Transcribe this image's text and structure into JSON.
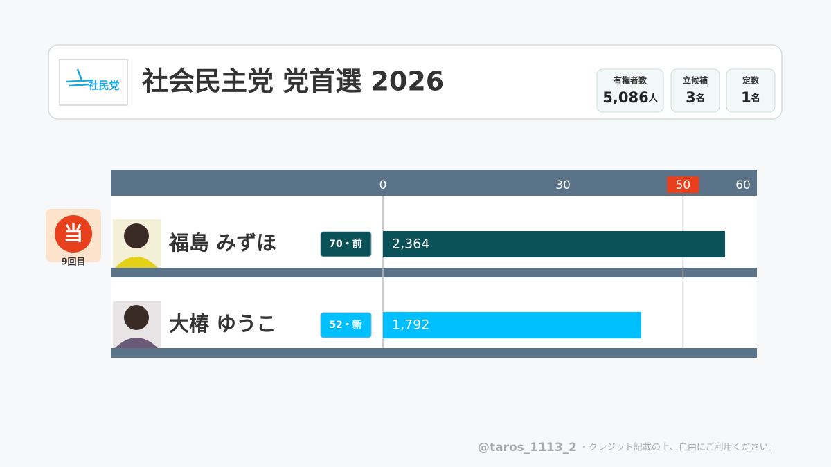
{
  "header": {
    "logo": "社民党",
    "title": "社会民主党 党首選 2026",
    "stats": [
      {
        "label": "有権者数",
        "value": "5,086",
        "unit": "人"
      },
      {
        "label": "立候補",
        "value": "3",
        "unit": "名"
      },
      {
        "label": "定数",
        "value": "1",
        "unit": "名"
      }
    ]
  },
  "chart_data": {
    "type": "bar",
    "orientation": "horizontal",
    "categories": [
      "福島 みずほ",
      "大椿 ゆうこ"
    ],
    "tags": [
      "70・前",
      "52・新"
    ],
    "values": [
      57,
      43
    ],
    "value_labels": [
      "2,364",
      "1,792"
    ],
    "colors": [
      "#0a5257",
      "#00bfff"
    ],
    "badges": [
      {
        "mark": "当",
        "note": "9回目"
      },
      null
    ],
    "xlim": [
      0,
      62.3
    ],
    "xticks": [
      0,
      30,
      50,
      60
    ],
    "threshold": 50
  },
  "footer": {
    "handle": "@taros_1113_2",
    "note": "・クレジット記載の上、自由にご利用ください。"
  }
}
